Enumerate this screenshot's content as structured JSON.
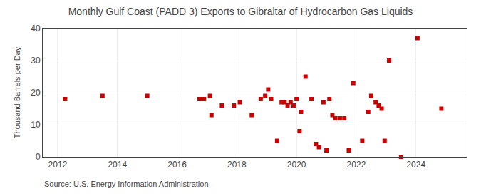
{
  "chart_data": {
    "type": "scatter",
    "title": "Monthly Gulf Coast (PADD 3) Exports to Gibraltar of Hydrocarbon Gas Liquids",
    "ylabel": "Thousand Barrels per Day",
    "annotations": [
      "Source: U.S. Energy Information Administration"
    ],
    "x": [
      2012.25,
      2013.5,
      2015.0,
      2016.75,
      2016.9,
      2017.1,
      2017.15,
      2017.5,
      2017.9,
      2018.1,
      2018.5,
      2018.8,
      2018.95,
      2019.05,
      2019.15,
      2019.35,
      2019.5,
      2019.6,
      2019.7,
      2019.8,
      2019.9,
      2020.0,
      2020.1,
      2020.15,
      2020.3,
      2020.5,
      2020.65,
      2020.75,
      2020.9,
      2021.0,
      2021.1,
      2021.2,
      2021.3,
      2021.45,
      2021.6,
      2021.75,
      2021.9,
      2022.2,
      2022.4,
      2022.5,
      2022.65,
      2022.75,
      2022.85,
      2022.95,
      2023.1,
      2023.5,
      2024.05,
      2024.85
    ],
    "values": [
      18,
      19,
      19,
      18,
      18,
      19,
      13,
      16,
      16,
      17,
      13,
      18,
      19,
      21,
      18,
      5,
      17,
      17,
      16,
      17,
      16,
      18,
      8,
      14,
      25,
      18,
      4,
      3,
      17,
      2,
      18,
      13,
      12,
      12,
      12,
      2,
      23,
      5,
      14,
      19,
      17,
      16,
      15,
      5,
      30,
      0,
      37,
      15
    ],
    "color": "#cc0000",
    "marker": "square",
    "xlim": [
      2011.5,
      2025.7
    ],
    "xticks": [
      2012,
      2014,
      2016,
      2018,
      2020,
      2022,
      2024
    ],
    "ylim": [
      0,
      40
    ],
    "yticks": [
      0,
      10,
      20,
      30,
      40
    ],
    "grid": true
  }
}
